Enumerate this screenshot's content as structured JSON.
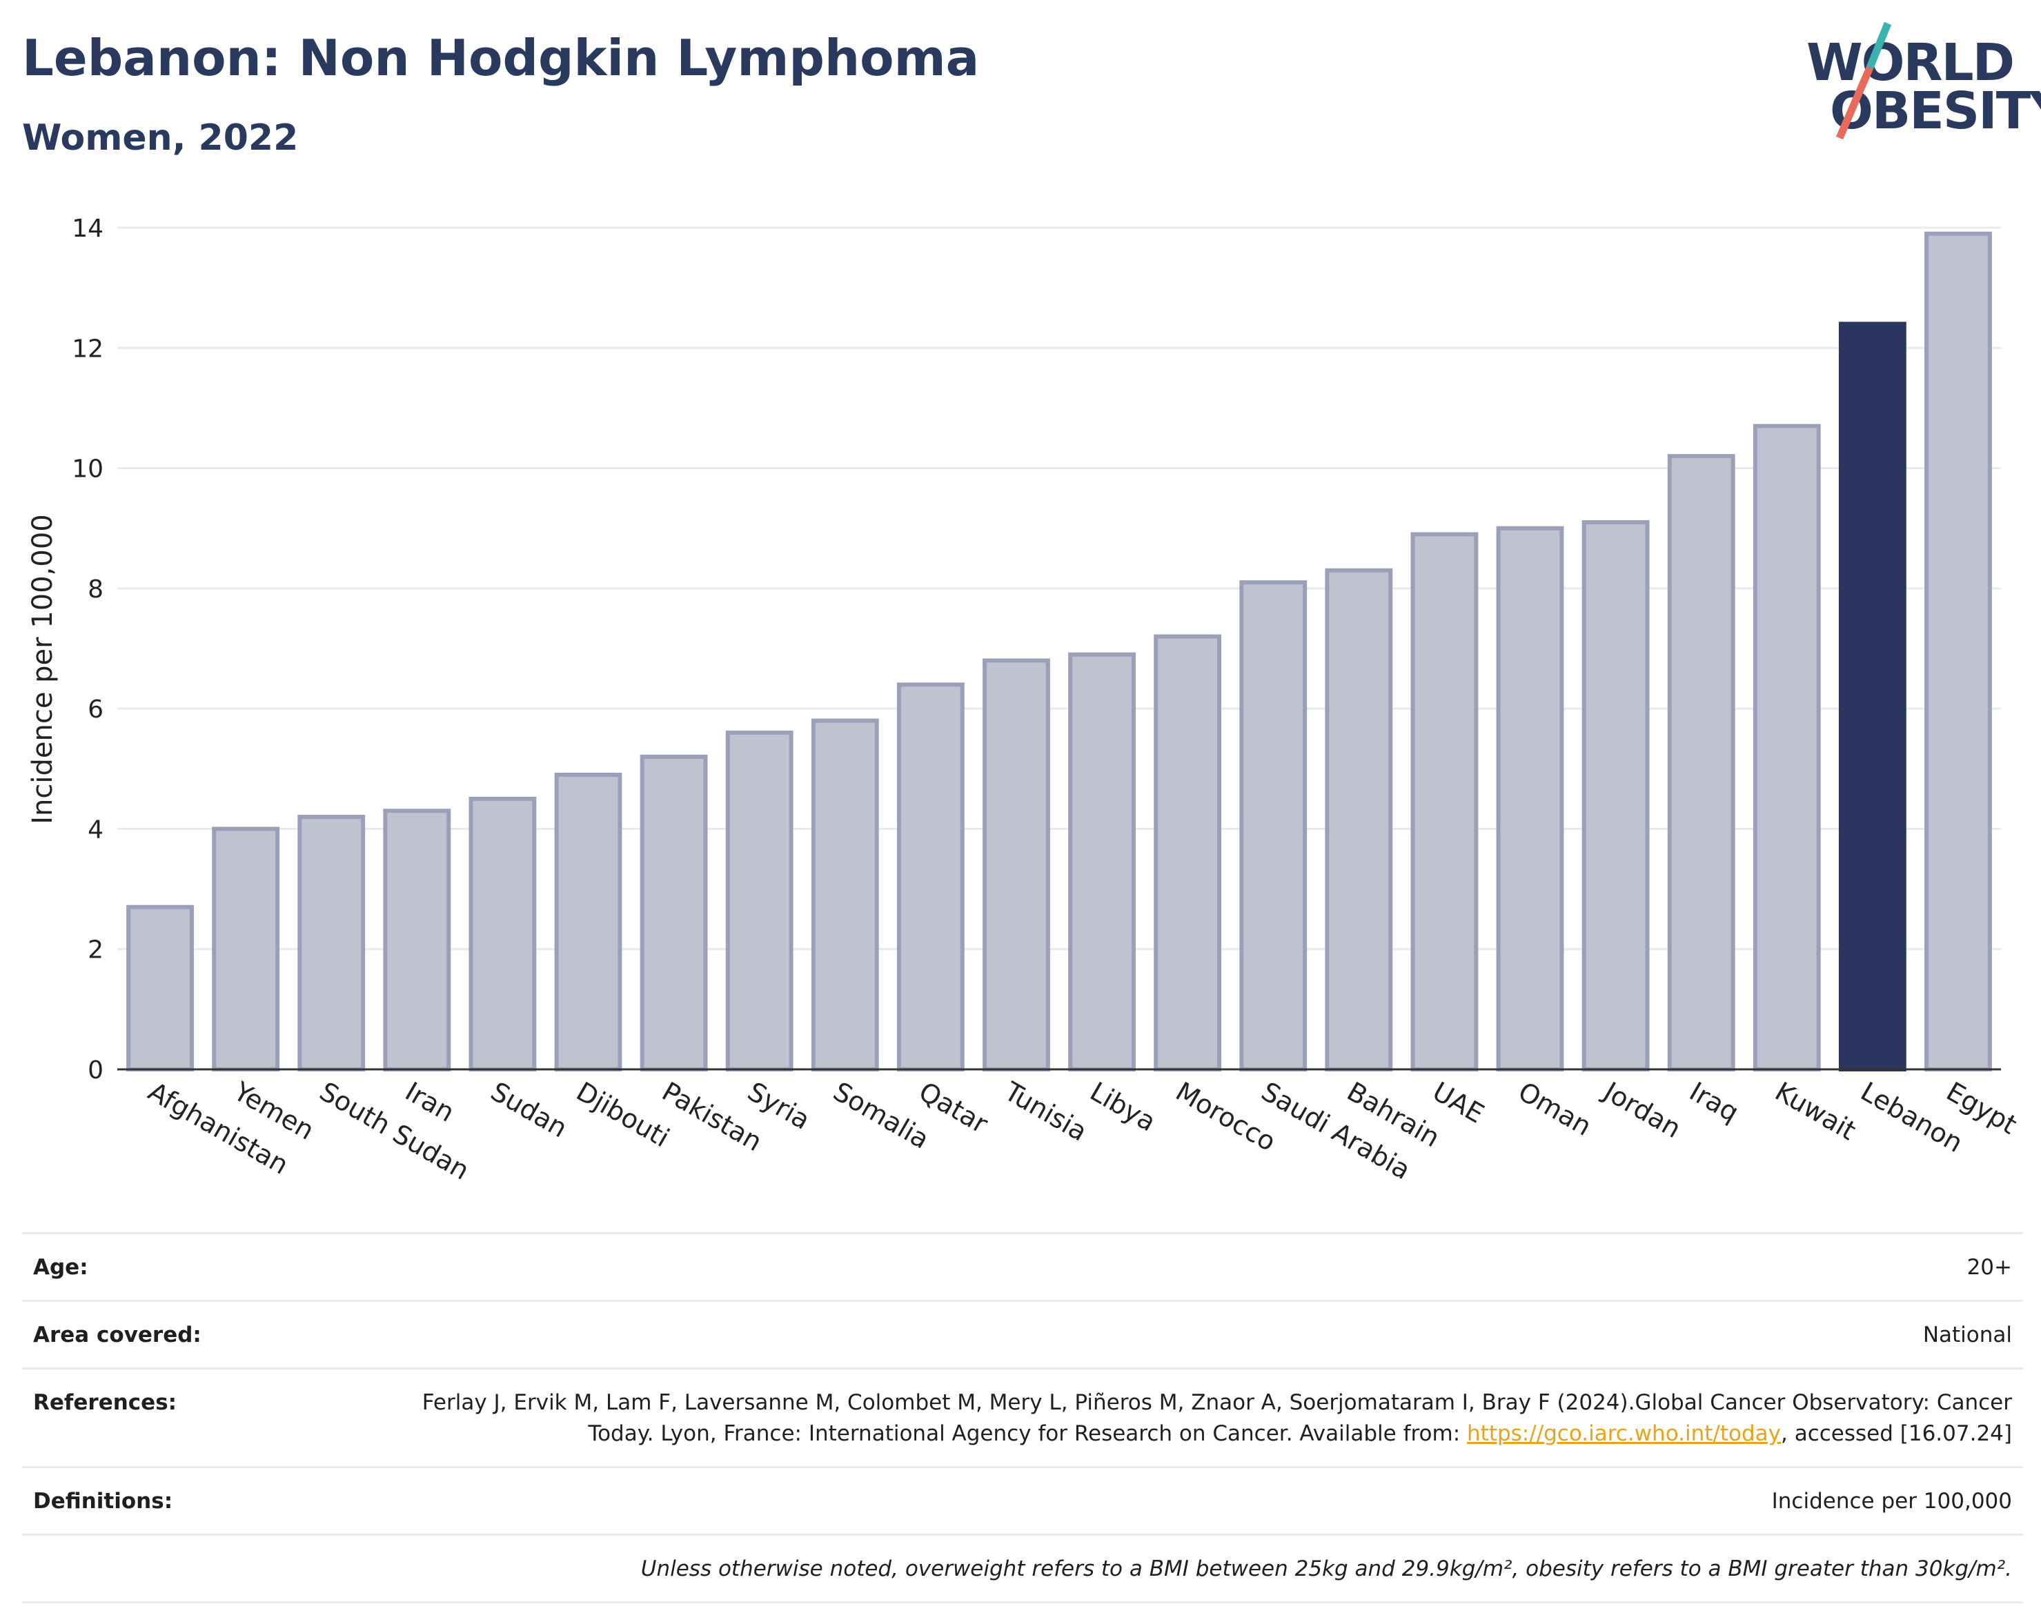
{
  "header": {
    "title": "Lebanon: Non Hodgkin Lymphoma",
    "subtitle": "Women, 2022"
  },
  "logo": {
    "line1": "WORLD",
    "line2": "OBESITY"
  },
  "colors": {
    "bar": "#bfc2cf",
    "bar_border": "#9ba0b8",
    "highlight": "#2a3660",
    "grid": "#e8eaf0",
    "logo_teal": "#3bb3b0",
    "logo_coral": "#e86a5a"
  },
  "chart_data": {
    "type": "bar",
    "ylabel": "Incidence per 100,000",
    "xlabel": "",
    "ylim": [
      0,
      14
    ],
    "yticks": [
      0,
      2,
      4,
      6,
      8,
      10,
      12,
      14
    ],
    "grid": true,
    "highlight": "Lebanon",
    "categories": [
      "Afghanistan",
      "Yemen",
      "South Sudan",
      "Iran",
      "Sudan",
      "Djibouti",
      "Pakistan",
      "Syria",
      "Somalia",
      "Qatar",
      "Tunisia",
      "Libya",
      "Morocco",
      "Saudi Arabia",
      "Bahrain",
      "UAE",
      "Oman",
      "Jordan",
      "Iraq",
      "Kuwait",
      "Lebanon",
      "Egypt"
    ],
    "values": [
      2.7,
      4.0,
      4.2,
      4.3,
      4.5,
      4.9,
      5.2,
      5.6,
      5.8,
      6.4,
      6.8,
      6.9,
      7.2,
      8.1,
      8.3,
      8.9,
      9.0,
      9.1,
      10.2,
      10.7,
      12.4,
      13.9
    ]
  },
  "info": {
    "age_label": "Age:",
    "age_value": "20+",
    "area_label": "Area covered:",
    "area_value": "National",
    "references_label": "References:",
    "references_text": "Ferlay J, Ervik M, Lam F, Laversanne M, Colombet M, Mery L, Piñeros M, Znaor A, Soerjomataram I, Bray F (2024).Global Cancer Observatory: Cancer Today. Lyon, France: International Agency for Research on Cancer. Available from: ",
    "references_link": "https://gco.iarc.who.int/today",
    "references_tail": ", accessed [16.07.24]",
    "definitions_label": "Definitions:",
    "definitions_value": "Incidence per 100,000",
    "note": "Unless otherwise noted, overweight refers to a BMI between 25kg and 29.9kg/m², obesity refers to a BMI greater than 30kg/m²."
  }
}
